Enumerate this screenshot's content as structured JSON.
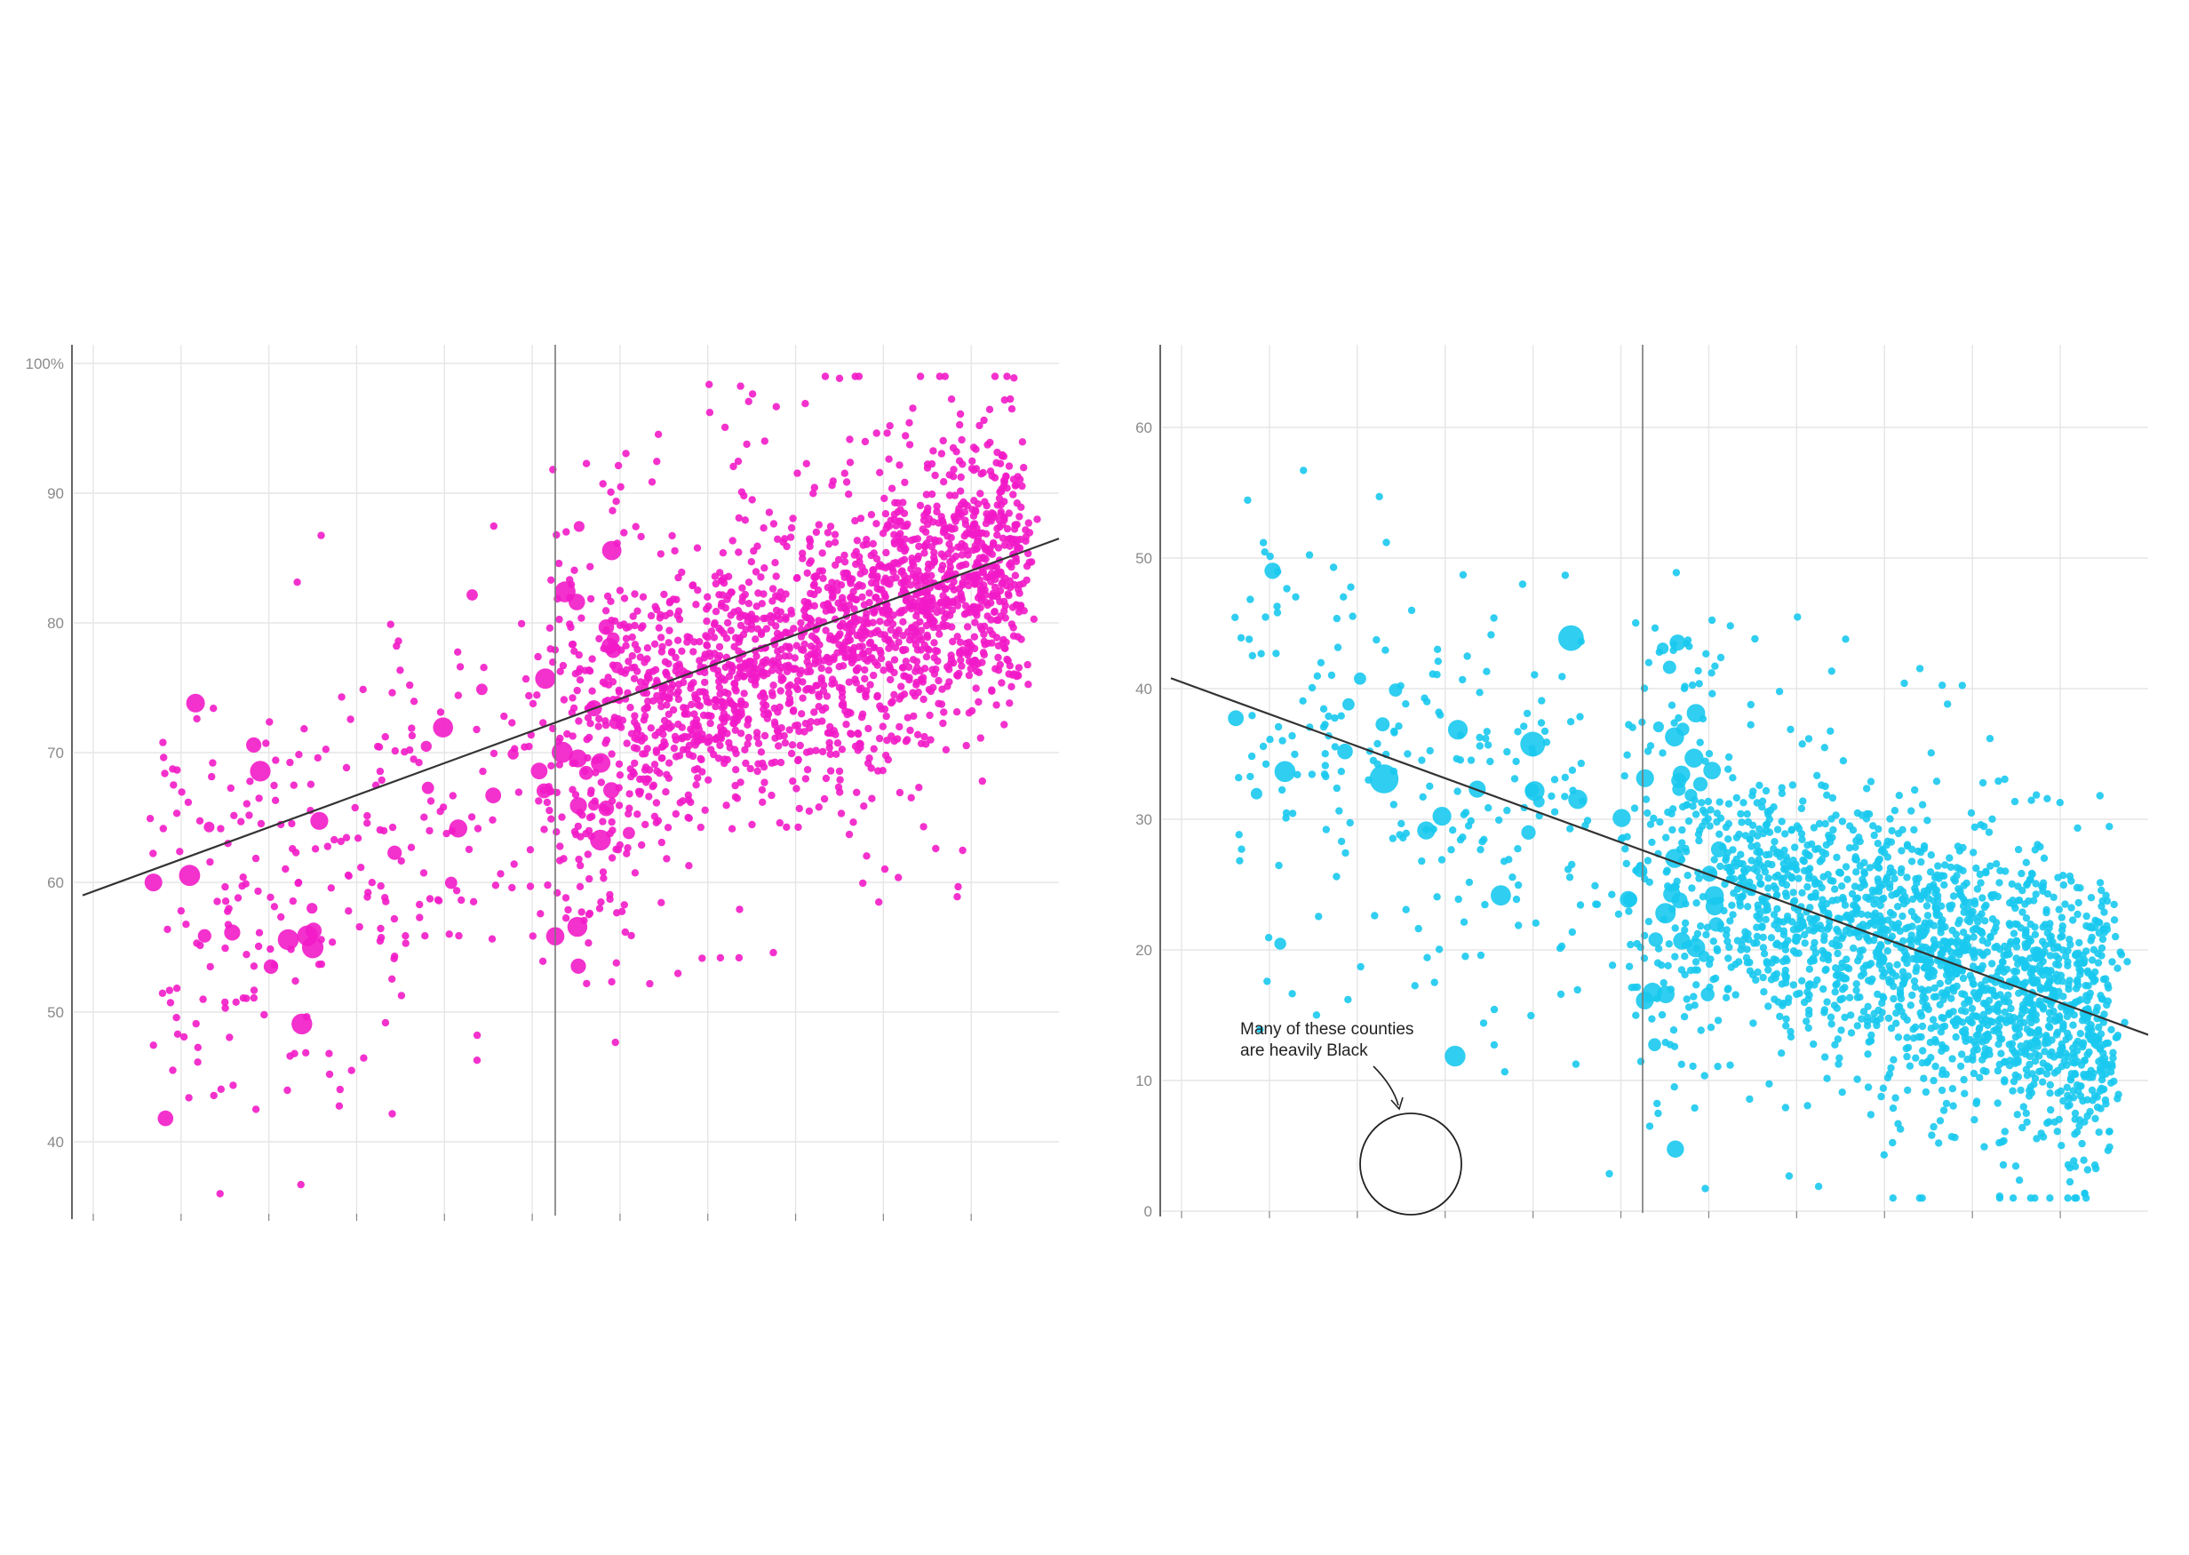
{
  "colors": {
    "left_dots": "#f21bc8",
    "right_dots": "#19c9ee",
    "grid": "#e6e6e6",
    "axis": "#555555",
    "trend": "#333333",
    "tick_text": "#8a8a8a"
  },
  "chart_data": [
    {
      "type": "scatter",
      "title": "",
      "xlabel": "",
      "ylabel": "",
      "ylim": [
        35,
        100
      ],
      "yticks": [
        {
          "value": 100,
          "label": "100%"
        },
        {
          "value": 90,
          "label": "90"
        },
        {
          "value": 80,
          "label": "80"
        },
        {
          "value": 70,
          "label": "70"
        },
        {
          "value": 60,
          "label": "60"
        },
        {
          "value": 50,
          "label": "50"
        },
        {
          "value": 40,
          "label": "40"
        }
      ],
      "x_grid_count": 11,
      "highlight_x_fraction": 0.5,
      "trendline": {
        "y_start": 59,
        "y_end": 86.5
      },
      "point_count": 2400,
      "grid": true,
      "marker_size": "scaled by county population"
    },
    {
      "type": "scatter",
      "title": "",
      "xlabel": "",
      "ylabel": "",
      "ylim": [
        0,
        67
      ],
      "yticks": [
        {
          "value": 60,
          "label": "60"
        },
        {
          "value": 50,
          "label": "50"
        },
        {
          "value": 40,
          "label": "40"
        },
        {
          "value": 30,
          "label": "30"
        },
        {
          "value": 20,
          "label": "20"
        },
        {
          "value": 10,
          "label": "10"
        },
        {
          "value": 0,
          "label": "0"
        }
      ],
      "x_grid_count": 11,
      "highlight_x_fraction": 0.5,
      "trendline": {
        "y_start": 40.8,
        "y_end": 13.5
      },
      "point_count": 2400,
      "grid": true,
      "marker_size": "scaled by county population",
      "annotation": {
        "lines": [
          "Many of these counties",
          "are heavily Black"
        ]
      }
    }
  ]
}
